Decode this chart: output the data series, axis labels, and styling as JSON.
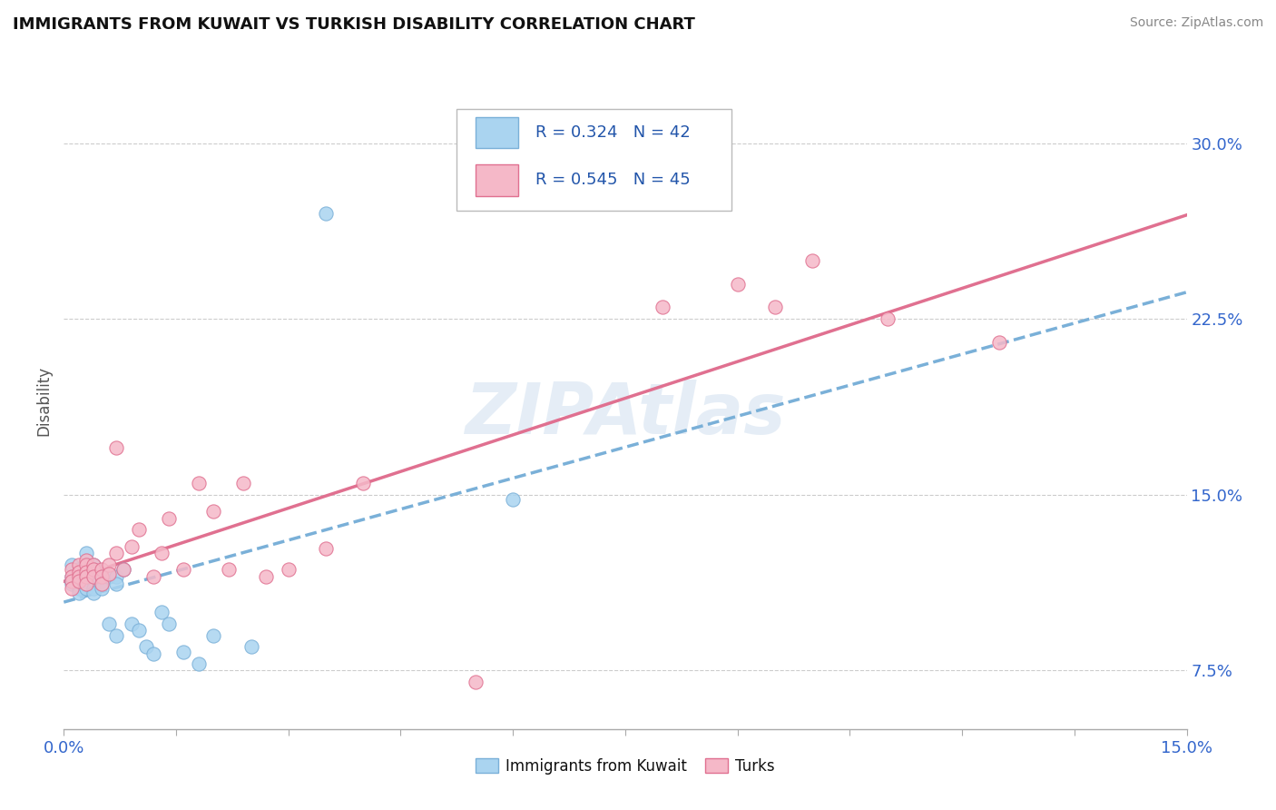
{
  "title": "IMMIGRANTS FROM KUWAIT VS TURKISH DISABILITY CORRELATION CHART",
  "source": "Source: ZipAtlas.com",
  "ylabel": "Disability",
  "xlim": [
    0.0,
    0.15
  ],
  "ylim": [
    0.05,
    0.33
  ],
  "ytick_vals": [
    0.075,
    0.15,
    0.225,
    0.3
  ],
  "ytick_labels": [
    "7.5%",
    "15.0%",
    "22.5%",
    "30.0%"
  ],
  "xtick_vals": [
    0.0,
    0.015,
    0.03,
    0.045,
    0.06,
    0.075,
    0.09,
    0.105,
    0.12,
    0.135,
    0.15
  ],
  "xtick_labels": [
    "0.0%",
    "",
    "",
    "",
    "",
    "",
    "",
    "",
    "",
    "",
    "15.0%"
  ],
  "background_color": "#ffffff",
  "grid_color": "#cccccc",
  "series1_color": "#aad4f0",
  "series2_color": "#f5b8c8",
  "line1_color": "#7ab0d8",
  "line2_color": "#e07090",
  "legend_box_color1": "#aad4f0",
  "legend_box_color2": "#f5b8c8",
  "R1": 0.324,
  "N1": 42,
  "R2": 0.545,
  "N2": 45,
  "series1_label": "Immigrants from Kuwait",
  "series2_label": "Turks",
  "series1_x": [
    0.001,
    0.001,
    0.001,
    0.001,
    0.002,
    0.002,
    0.002,
    0.002,
    0.002,
    0.003,
    0.003,
    0.003,
    0.003,
    0.003,
    0.003,
    0.004,
    0.004,
    0.004,
    0.004,
    0.004,
    0.004,
    0.005,
    0.005,
    0.005,
    0.006,
    0.006,
    0.007,
    0.007,
    0.007,
    0.008,
    0.009,
    0.01,
    0.011,
    0.012,
    0.013,
    0.014,
    0.016,
    0.018,
    0.02,
    0.025,
    0.035,
    0.06
  ],
  "series1_y": [
    0.12,
    0.115,
    0.113,
    0.112,
    0.118,
    0.115,
    0.113,
    0.11,
    0.108,
    0.125,
    0.118,
    0.116,
    0.113,
    0.112,
    0.11,
    0.12,
    0.118,
    0.115,
    0.113,
    0.11,
    0.108,
    0.115,
    0.112,
    0.11,
    0.095,
    0.115,
    0.09,
    0.115,
    0.112,
    0.118,
    0.095,
    0.092,
    0.085,
    0.082,
    0.1,
    0.095,
    0.083,
    0.078,
    0.09,
    0.085,
    0.27,
    0.148
  ],
  "series2_x": [
    0.001,
    0.001,
    0.001,
    0.001,
    0.002,
    0.002,
    0.002,
    0.002,
    0.003,
    0.003,
    0.003,
    0.003,
    0.003,
    0.004,
    0.004,
    0.004,
    0.005,
    0.005,
    0.005,
    0.006,
    0.006,
    0.007,
    0.007,
    0.008,
    0.009,
    0.01,
    0.012,
    0.013,
    0.014,
    0.016,
    0.018,
    0.02,
    0.022,
    0.024,
    0.027,
    0.03,
    0.035,
    0.04,
    0.055,
    0.08,
    0.09,
    0.095,
    0.1,
    0.11,
    0.125
  ],
  "series2_y": [
    0.118,
    0.115,
    0.113,
    0.11,
    0.12,
    0.117,
    0.115,
    0.113,
    0.122,
    0.12,
    0.117,
    0.115,
    0.112,
    0.12,
    0.118,
    0.115,
    0.118,
    0.115,
    0.112,
    0.12,
    0.116,
    0.17,
    0.125,
    0.118,
    0.128,
    0.135,
    0.115,
    0.125,
    0.14,
    0.118,
    0.155,
    0.143,
    0.118,
    0.155,
    0.115,
    0.118,
    0.127,
    0.155,
    0.07,
    0.23,
    0.24,
    0.23,
    0.25,
    0.225,
    0.215
  ]
}
